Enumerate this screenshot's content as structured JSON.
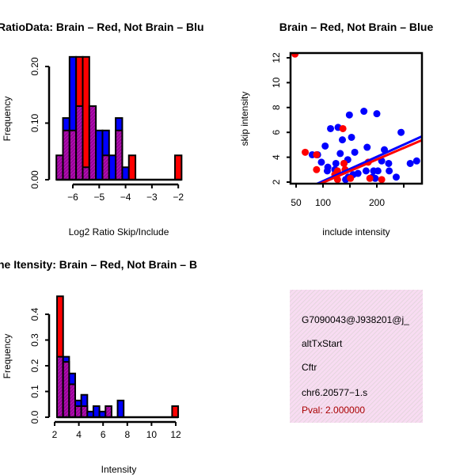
{
  "colors": {
    "red": "#ff0000",
    "blue": "#0000ff",
    "overlap": "#990099",
    "panel_bg": "#f7d7f0",
    "pval": "#aa0000"
  },
  "chart_data": [
    {
      "type": "bar",
      "title": "RatioData: Brain – Red, Not Brain – Blu",
      "xlabel": "Log2 Ratio Skip/Include",
      "ylabel": "Frequency",
      "xticks": [
        "−6",
        "−5",
        "−4",
        "−3",
        "−2"
      ],
      "xtick_values": [
        -6,
        -5,
        -4,
        -3,
        -2
      ],
      "yticks": [
        "0.00",
        "0.10",
        "0.20"
      ],
      "ytick_values": [
        0,
        0.1,
        0.2
      ],
      "bin_start": -6.625,
      "bin_width": 0.25,
      "series": [
        {
          "name": "Brain (red)",
          "values": [
            0.043,
            0.087,
            0.087,
            0.217,
            0.217,
            0.13,
            0,
            0.043,
            0,
            0.087,
            0,
            0.043,
            0,
            0,
            0,
            0,
            0,
            0,
            0.043
          ]
        },
        {
          "name": "Not Brain (blue)",
          "values": [
            0.043,
            0.109,
            0.217,
            0.13,
            0.022,
            0.13,
            0.087,
            0.087,
            0.043,
            0.109,
            0.022,
            0,
            0,
            0,
            0,
            0,
            0,
            0,
            0
          ]
        }
      ]
    },
    {
      "type": "scatter",
      "title": "Brain – Red, Not Brain – Blue",
      "xlabel": "include intensity",
      "ylabel": "skip intensity",
      "xticks": [
        "50",
        "100",
        "200"
      ],
      "xtick_values": [
        50,
        100,
        150,
        200,
        250
      ],
      "xtick_label_values": [
        50,
        100,
        200
      ],
      "yticks": [
        "2",
        "4",
        "6",
        "8",
        "10",
        "12"
      ],
      "ytick_values": [
        2,
        4,
        6,
        8,
        10,
        12
      ],
      "xlim": [
        40,
        285
      ],
      "ylim": [
        1.9,
        12.4
      ],
      "series": [
        {
          "name": "Brain (red)",
          "points": [
            [
              48,
              12.3
            ],
            [
              67,
              4.4
            ],
            [
              88,
              3.0
            ],
            [
              88,
              4.2
            ],
            [
              137,
              6.3
            ],
            [
              127,
              2.9
            ],
            [
              141,
              3.0
            ],
            [
              127,
              2.2
            ],
            [
              151,
              2.3
            ],
            [
              184,
              3.6
            ],
            [
              187,
              2.3
            ],
            [
              209,
              2.2
            ],
            [
              122,
              2.6
            ],
            [
              139,
              3.5
            ]
          ],
          "fit": [
            [
              86,
              1.7
            ],
            [
              285,
              5.4
            ]
          ]
        },
        {
          "name": "Not Brain (blue)",
          "points": [
            [
              80,
              4.2
            ],
            [
              90,
              4.2
            ],
            [
              97,
              3.6
            ],
            [
              104,
              4.9
            ],
            [
              114,
              6.3
            ],
            [
              128,
              6.4
            ],
            [
              136,
              5.4
            ],
            [
              153,
              5.6
            ],
            [
              149,
              7.4
            ],
            [
              176,
              7.7
            ],
            [
              200,
              7.5
            ],
            [
              182,
              4.8
            ],
            [
              132,
              4.3
            ],
            [
              159,
              4.4
            ],
            [
              146,
              3.8
            ],
            [
              139,
              3.5
            ],
            [
              124,
              3.5
            ],
            [
              109,
              3.2
            ],
            [
              108,
              2.9
            ],
            [
              122,
              3.0
            ],
            [
              214,
              4.6
            ],
            [
              209,
              3.7
            ],
            [
              222,
              3.5
            ],
            [
              223,
              2.9
            ],
            [
              236,
              2.4
            ],
            [
              245,
              6.0
            ],
            [
              262,
              3.5
            ],
            [
              274,
              3.7
            ],
            [
              142,
              2.2
            ],
            [
              156,
              2.6
            ],
            [
              165,
              2.7
            ],
            [
              180,
              2.9
            ],
            [
              194,
              2.9
            ],
            [
              202,
              2.9
            ],
            [
              192,
              2.4
            ],
            [
              197,
              2.3
            ],
            [
              147,
              2.4
            ]
          ],
          "fit": [
            [
              86,
              1.8
            ],
            [
              285,
              5.7
            ]
          ]
        }
      ]
    },
    {
      "type": "bar",
      "title": "ne Itensity: Brain – Red, Not Brain – B",
      "xlabel": "Intensity",
      "ylabel": "Frequency",
      "xticks": [
        "2",
        "4",
        "6",
        "8",
        "10",
        "12"
      ],
      "xtick_values": [
        2,
        4,
        6,
        8,
        10,
        12
      ],
      "yticks": [
        "0.0",
        "0.1",
        "0.2",
        "0.3",
        "0.4"
      ],
      "ytick_values": [
        0,
        0.1,
        0.2,
        0.3,
        0.4
      ],
      "bin_start": 2.2,
      "bin_width": 0.5,
      "series": [
        {
          "name": "Brain (red)",
          "values": [
            0.47,
            0.215,
            0.128,
            0.043,
            0.043,
            0,
            0,
            0,
            0.043,
            0,
            0,
            0,
            0,
            0,
            0,
            0,
            0,
            0,
            0,
            0.043
          ]
        },
        {
          "name": "Not Brain (blue)",
          "values": [
            0.235,
            0.235,
            0.17,
            0.065,
            0.087,
            0.022,
            0.043,
            0.022,
            0.043,
            0,
            0.065,
            0,
            0,
            0,
            0,
            0,
            0,
            0,
            0,
            0
          ]
        }
      ]
    }
  ],
  "info_panel": {
    "lines": [
      "G7090043@J938201@j_",
      "altTxStart",
      "Cftr",
      "chr6.20577−1.s"
    ],
    "pval": "Pval: 2.000000"
  }
}
